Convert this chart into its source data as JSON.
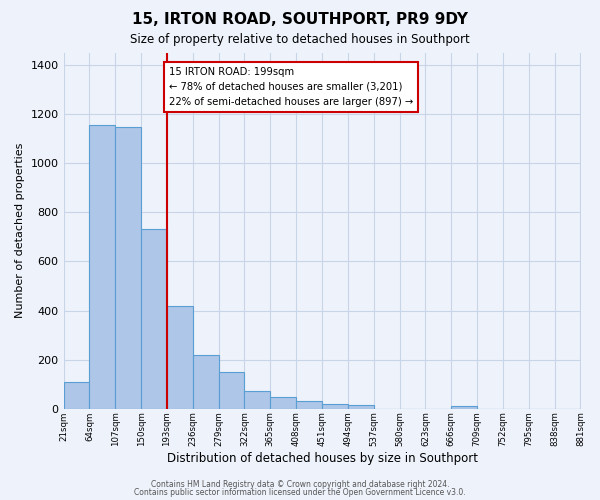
{
  "title": "15, IRTON ROAD, SOUTHPORT, PR9 9DY",
  "subtitle": "Size of property relative to detached houses in Southport",
  "xlabel": "Distribution of detached houses by size in Southport",
  "ylabel": "Number of detached properties",
  "bar_edges": [
    21,
    64,
    107,
    150,
    193,
    236,
    279,
    322,
    365,
    408,
    451,
    494,
    537,
    580,
    623,
    666,
    709,
    752,
    795,
    838,
    881
  ],
  "bar_heights": [
    110,
    1155,
    1148,
    730,
    420,
    220,
    148,
    72,
    50,
    30,
    20,
    14,
    0,
    0,
    0,
    10,
    0,
    0,
    0,
    0
  ],
  "bar_color": "#aec6e8",
  "bar_edge_color": "#5a9fd4",
  "vline_x": 193,
  "vline_color": "#cc0000",
  "annotation_text": "15 IRTON ROAD: 199sqm\n← 78% of detached houses are smaller (3,201)\n22% of semi-detached houses are larger (897) →",
  "annotation_box_color": "#ffffff",
  "annotation_box_edge": "#cc0000",
  "ylim": [
    0,
    1450
  ],
  "yticks": [
    0,
    200,
    400,
    600,
    800,
    1000,
    1200,
    1400
  ],
  "tick_labels": [
    "21sqm",
    "64sqm",
    "107sqm",
    "150sqm",
    "193sqm",
    "236sqm",
    "279sqm",
    "322sqm",
    "365sqm",
    "408sqm",
    "451sqm",
    "494sqm",
    "537sqm",
    "580sqm",
    "623sqm",
    "666sqm",
    "709sqm",
    "752sqm",
    "795sqm",
    "838sqm",
    "881sqm"
  ],
  "footer1": "Contains HM Land Registry data © Crown copyright and database right 2024.",
  "footer2": "Contains public sector information licensed under the Open Government Licence v3.0.",
  "bg_color": "#eef2fb",
  "grid_color": "#c8d4e8"
}
